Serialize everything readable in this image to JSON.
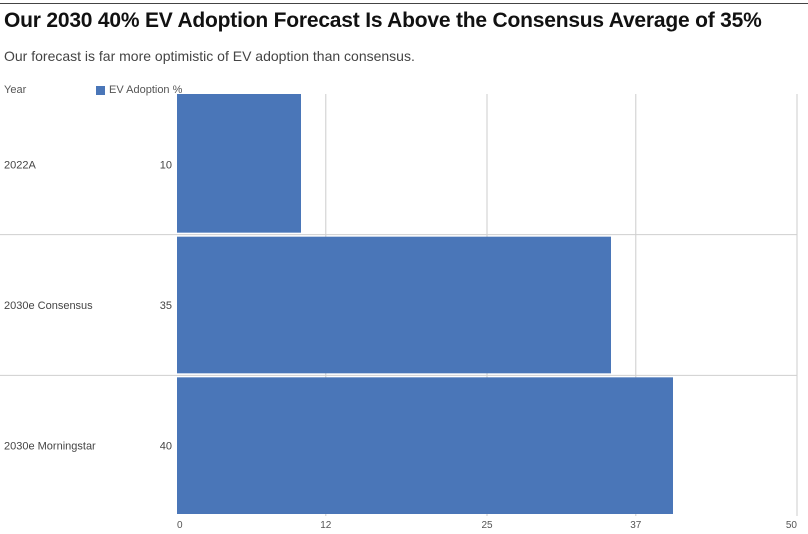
{
  "title": "Our 2030 40% EV Adoption Forecast Is Above the Consensus Average of 35%",
  "subtitle": "Our forecast is far more optimistic of EV adoption than consensus.",
  "colors": {
    "bar": "#4a76b8",
    "grid": "#cccccc",
    "separator": "#cfcfcf"
  },
  "chart_data": {
    "type": "bar",
    "orientation": "horizontal",
    "column_header": "Year",
    "categories": [
      "2022A",
      "2030e Consensus",
      "2030e Morningstar"
    ],
    "series": [
      {
        "name": "EV Adoption %",
        "values": [
          10,
          35,
          40
        ]
      }
    ],
    "value_labels": [
      "10",
      "35",
      "40"
    ],
    "xlim": [
      0,
      50
    ],
    "xticks": [
      0,
      12,
      25,
      37,
      50
    ],
    "xtick_labels": [
      "0",
      "12",
      "25",
      "37",
      "50"
    ],
    "grid": true,
    "legend_placement": "top-left"
  }
}
